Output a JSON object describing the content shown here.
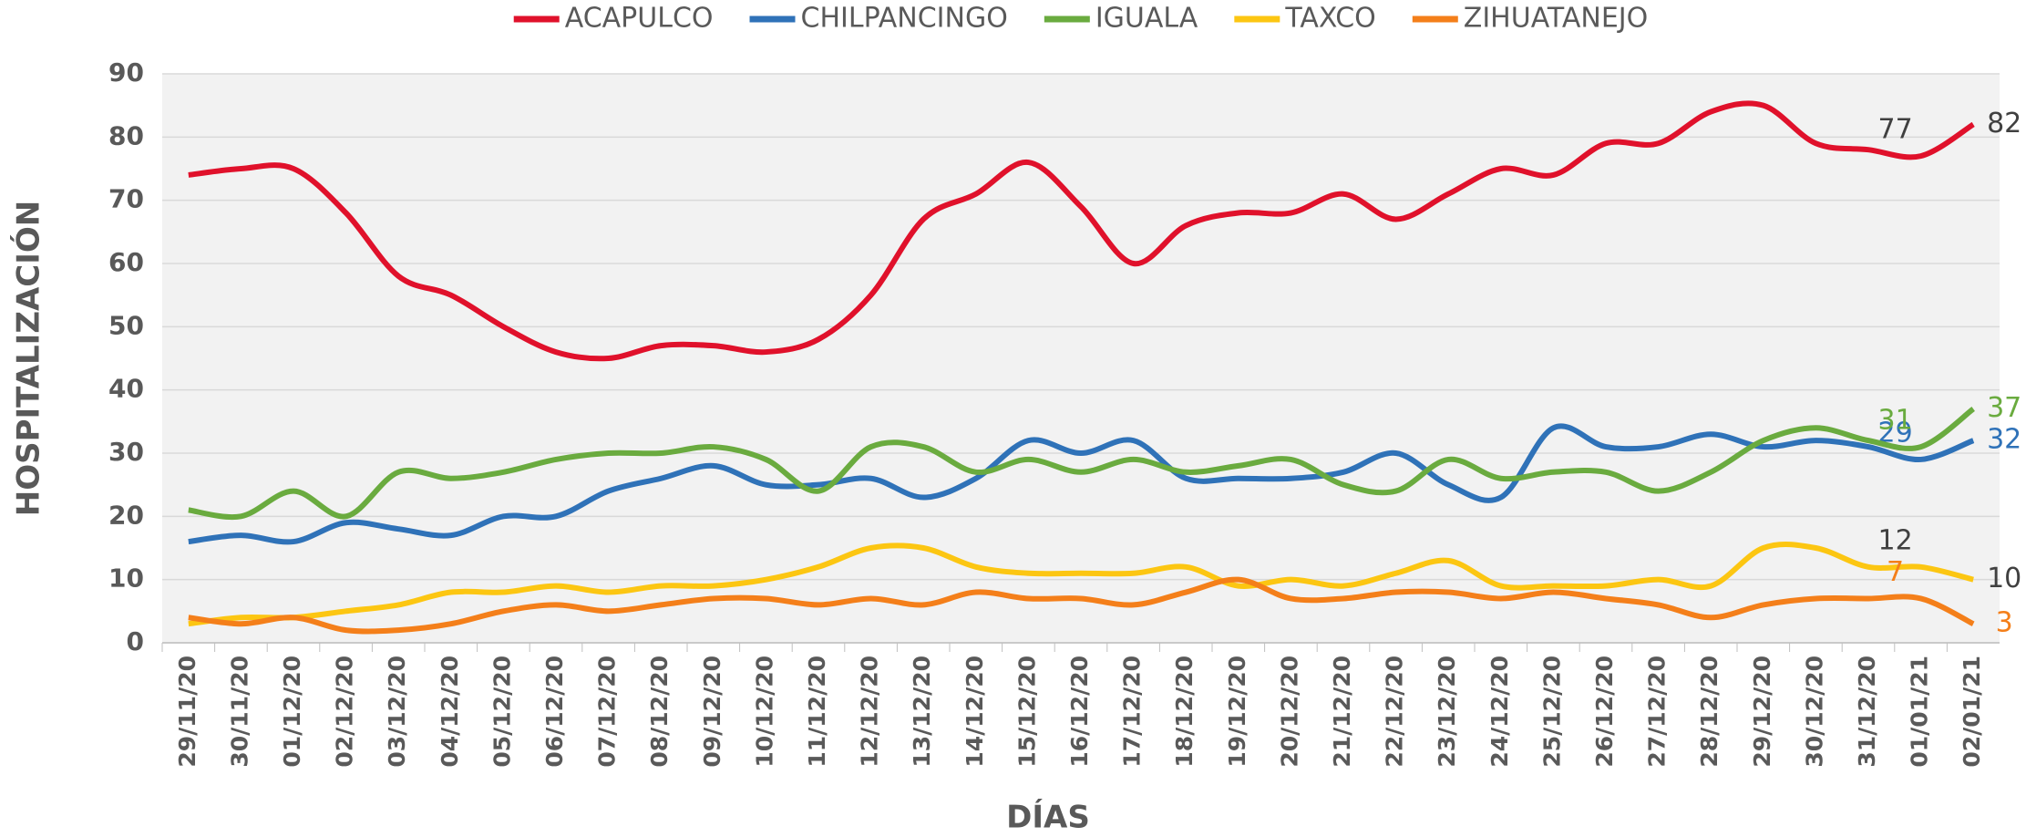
{
  "chart_data": {
    "type": "line",
    "x_label": "DÍAS",
    "y_label": "HOSPITALIZACIÓN",
    "categories": [
      "29/11/20",
      "30/11/20",
      "01/12/20",
      "02/12/20",
      "03/12/20",
      "04/12/20",
      "05/12/20",
      "06/12/20",
      "07/12/20",
      "08/12/20",
      "09/12/20",
      "10/12/20",
      "11/12/20",
      "12/12/20",
      "13/12/20",
      "14/12/20",
      "15/12/20",
      "16/12/20",
      "17/12/20",
      "18/12/20",
      "19/12/20",
      "20/12/20",
      "21/12/20",
      "22/12/20",
      "23/12/20",
      "24/12/20",
      "25/12/20",
      "26/12/20",
      "27/12/20",
      "28/12/20",
      "29/12/20",
      "30/12/20",
      "31/12/20",
      "01/01/21",
      "02/01/21"
    ],
    "series": [
      {
        "name": "ACAPULCO",
        "color": "#e0112b",
        "label_color": "#404040",
        "values": [
          74,
          75,
          75,
          68,
          58,
          55,
          50,
          46,
          45,
          47,
          47,
          46,
          48,
          55,
          67,
          71,
          76,
          69,
          60,
          66,
          68,
          68,
          71,
          67,
          71,
          75,
          74,
          79,
          79,
          84,
          85,
          79,
          78,
          77,
          82
        ]
      },
      {
        "name": "CHILPANCINGO",
        "color": "#2f72b8",
        "label_color": "#2f72b8",
        "values": [
          16,
          17,
          16,
          19,
          18,
          17,
          20,
          20,
          24,
          26,
          28,
          25,
          25,
          26,
          23,
          26,
          32,
          30,
          32,
          26,
          26,
          26,
          27,
          30,
          25,
          23,
          34,
          31,
          31,
          33,
          31,
          32,
          31,
          29,
          32
        ]
      },
      {
        "name": "IGUALA",
        "color": "#6aab3f",
        "label_color": "#6aab3f",
        "values": [
          21,
          20,
          24,
          20,
          27,
          26,
          27,
          29,
          30,
          30,
          31,
          29,
          24,
          31,
          31,
          27,
          29,
          27,
          29,
          27,
          28,
          29,
          25,
          24,
          29,
          26,
          27,
          27,
          24,
          27,
          32,
          34,
          32,
          31,
          37
        ]
      },
      {
        "name": "TAXCO",
        "color": "#fcc612",
        "label_color": "#404040",
        "values": [
          3,
          4,
          4,
          5,
          6,
          8,
          8,
          9,
          8,
          9,
          9,
          10,
          12,
          15,
          15,
          12,
          11,
          11,
          11,
          12,
          9,
          10,
          9,
          11,
          13,
          9,
          9,
          9,
          10,
          9,
          15,
          15,
          12,
          12,
          10
        ]
      },
      {
        "name": "ZIHUATANEJO",
        "color": "#f47f1a",
        "label_color": "#f47f1a",
        "values": [
          4,
          3,
          4,
          2,
          2,
          3,
          5,
          6,
          5,
          6,
          7,
          7,
          6,
          7,
          6,
          8,
          7,
          7,
          6,
          8,
          10,
          7,
          7,
          8,
          8,
          7,
          8,
          7,
          6,
          4,
          6,
          7,
          7,
          7,
          3
        ]
      }
    ],
    "ylim": [
      0,
      90
    ],
    "yticks": [
      0,
      10,
      20,
      30,
      40,
      50,
      60,
      70,
      80,
      90
    ],
    "grid": true,
    "legend": "top"
  }
}
